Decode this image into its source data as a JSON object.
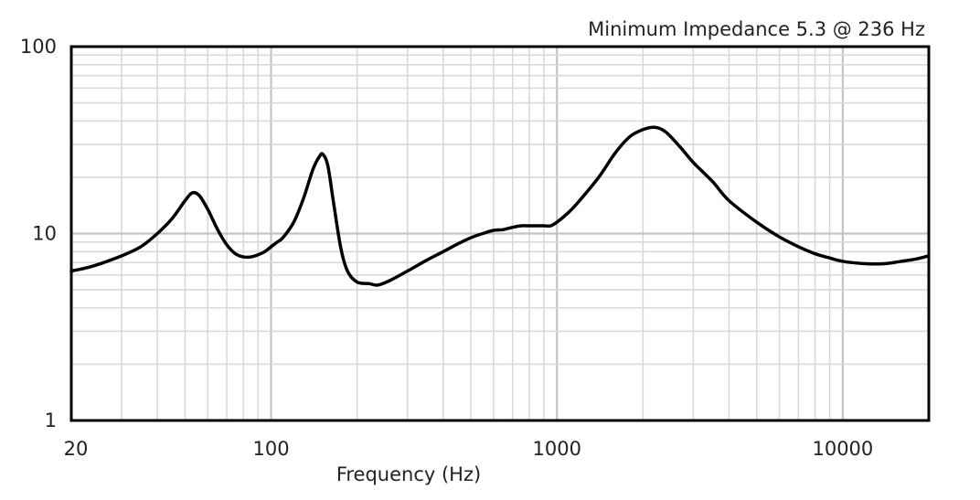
{
  "chart_data": {
    "type": "line",
    "title": "",
    "annotation": "Minimum Impedance 5.3 @ 236 Hz",
    "xlabel": "Frequency (Hz)",
    "ylabel": "",
    "x_scale": "log",
    "y_scale": "log",
    "xlim": [
      20,
      20000
    ],
    "ylim": [
      1,
      100
    ],
    "x_ticks": [
      20,
      100,
      1000,
      10000
    ],
    "x_tick_labels": [
      "20",
      "100",
      "1000",
      "10000"
    ],
    "y_ticks": [
      1,
      10,
      100
    ],
    "y_tick_labels": [
      "1",
      "10",
      "100"
    ],
    "grid": true,
    "series": [
      {
        "x": [
          20,
          23,
          26,
          30,
          35,
          40,
          45,
          50,
          53,
          56,
          60,
          65,
          70,
          75,
          80,
          85,
          90,
          95,
          100,
          105,
          110,
          120,
          130,
          140,
          148,
          152,
          158,
          165,
          175,
          185,
          200,
          220,
          236,
          260,
          300,
          350,
          400,
          450,
          500,
          550,
          600,
          650,
          700,
          750,
          800,
          850,
          900,
          950,
          1000,
          1100,
          1200,
          1400,
          1600,
          1800,
          2000,
          2200,
          2400,
          2700,
          3000,
          3500,
          4000,
          5000,
          6000,
          7000,
          8000,
          9000,
          10000,
          12000,
          14000,
          16000,
          18000,
          20000
        ],
        "y": [
          6.3,
          6.6,
          7.0,
          7.6,
          8.5,
          10.0,
          12.0,
          15.0,
          16.5,
          16.0,
          13.5,
          10.5,
          8.7,
          7.8,
          7.5,
          7.5,
          7.7,
          8.0,
          8.5,
          9.0,
          9.5,
          11.5,
          15.5,
          22.0,
          26.0,
          26.5,
          23.0,
          15.0,
          8.5,
          6.3,
          5.5,
          5.4,
          5.3,
          5.6,
          6.3,
          7.2,
          8.0,
          8.8,
          9.5,
          10.0,
          10.4,
          10.5,
          10.8,
          11.0,
          11.0,
          11.0,
          11.0,
          11.0,
          11.5,
          13.0,
          15.0,
          20.0,
          27.0,
          33.0,
          36.0,
          37.0,
          35.0,
          29.0,
          24.0,
          19.0,
          15.0,
          11.5,
          9.6,
          8.5,
          7.8,
          7.4,
          7.1,
          6.9,
          6.9,
          7.1,
          7.3,
          7.6
        ]
      }
    ]
  }
}
